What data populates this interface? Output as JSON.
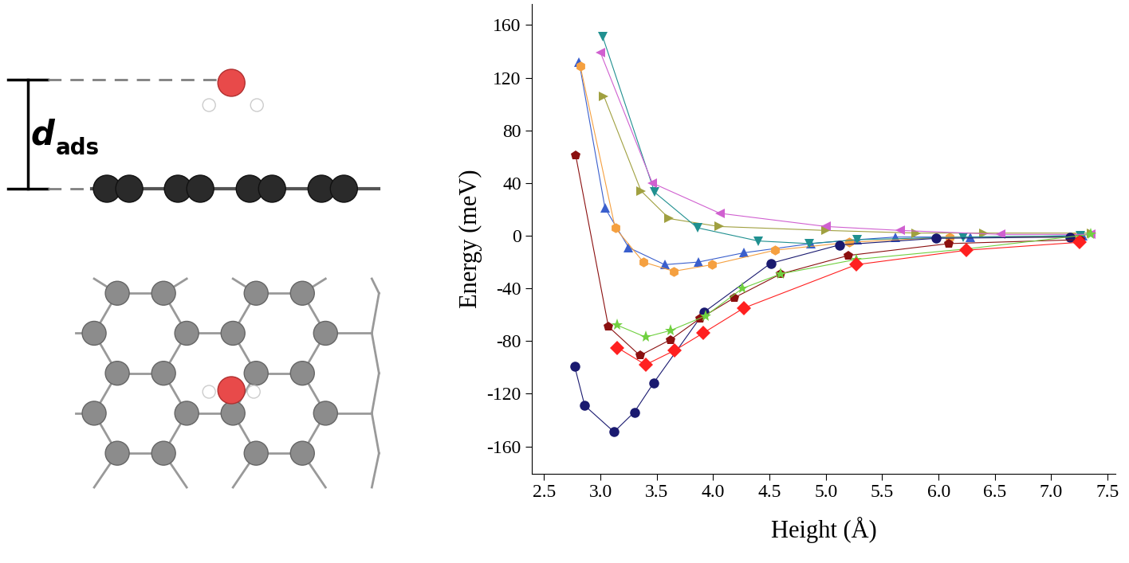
{
  "chart_data": {
    "type": "line",
    "x_label": "Height (Å)",
    "y_label": "Energy (meV)",
    "xlim": [
      2.39,
      7.57
    ],
    "ylim": [
      -181,
      176
    ],
    "xticks": [
      2.5,
      3.0,
      3.5,
      4.0,
      4.5,
      5.0,
      5.5,
      6.0,
      6.5,
      7.0,
      7.5
    ],
    "yticks": [
      -160,
      -120,
      -80,
      -40,
      0,
      40,
      80,
      120,
      160
    ],
    "grid": false,
    "series": [
      {
        "color": "#3a5fcd",
        "marker": "triangle_up",
        "line_style": "solid",
        "x": [
          2.81,
          3.04,
          3.25,
          3.57,
          3.87,
          4.27,
          4.87,
          5.28,
          5.62,
          6.28,
          7.28
        ],
        "values": [
          132,
          21,
          -9,
          -22,
          -20,
          -13,
          -6,
          -3,
          -1,
          -1,
          0
        ]
      },
      {
        "color": "#f5a040",
        "marker": "hexagon",
        "line_style": "solid",
        "x": [
          2.82,
          3.13,
          3.38,
          3.65,
          3.99,
          4.55,
          5.21,
          6.1,
          7.2
        ],
        "values": [
          129,
          6,
          -20,
          -27,
          -22,
          -11,
          -5,
          -1,
          -1
        ]
      },
      {
        "color": "#a0a040",
        "marker": "triangle_right",
        "line_style": "solid",
        "x": [
          3.03,
          3.36,
          3.61,
          4.05,
          5.0,
          5.8,
          6.4,
          7.36
        ],
        "values": [
          106,
          34,
          13,
          7,
          4,
          2,
          2,
          2
        ]
      },
      {
        "color": "#209090",
        "marker": "triangle_down",
        "line_style": "solid",
        "x": [
          3.02,
          3.48,
          3.86,
          4.4,
          4.85,
          5.28,
          6.22,
          7.26
        ],
        "values": [
          151,
          33,
          6,
          -4,
          -6,
          -3,
          -1,
          0
        ]
      },
      {
        "color": "#d060d0",
        "marker": "triangle_left",
        "line_style": "solid",
        "x": [
          3.0,
          3.46,
          4.06,
          5.0,
          5.66,
          6.55,
          7.35
        ],
        "values": [
          139,
          40,
          17,
          7,
          4,
          1,
          1
        ]
      },
      {
        "color": "#1a1a70",
        "marker": "circle",
        "line_style": "solid",
        "x": [
          2.77,
          2.86,
          3.12,
          3.3,
          3.47,
          3.92,
          4.51,
          5.12,
          5.98,
          7.17
        ],
        "values": [
          -99,
          -129,
          -149,
          -134,
          -112,
          -58,
          -21,
          -7,
          -2,
          -1
        ]
      },
      {
        "color": "#8b1010",
        "marker": "pentagon",
        "line_style": "solid",
        "x": [
          2.78,
          3.07,
          3.35,
          3.62,
          3.88,
          4.19,
          4.6,
          5.2,
          6.09,
          7.26
        ],
        "values": [
          61,
          -69,
          -91,
          -79,
          -63,
          -47,
          -29,
          -15,
          -6,
          -3
        ]
      },
      {
        "color": "#70d040",
        "marker": "star",
        "line_style": "solid",
        "x": [
          3.15,
          3.4,
          3.62,
          3.93,
          4.26,
          4.6,
          5.27,
          6.25,
          7.35
        ],
        "values": [
          -68,
          -77,
          -72,
          -61,
          -40,
          -29,
          -18,
          -10,
          1
        ]
      },
      {
        "color": "#ff2020",
        "marker": "diamond",
        "line_style": "solid",
        "x": [
          3.15,
          3.4,
          3.66,
          3.91,
          4.27,
          5.27,
          6.25,
          7.25
        ],
        "values": [
          -85,
          -98,
          -87,
          -74,
          -55,
          -22,
          -11,
          -5
        ]
      }
    ]
  },
  "diagram": {
    "label": {
      "text": "d",
      "subscript": "ads"
    }
  }
}
